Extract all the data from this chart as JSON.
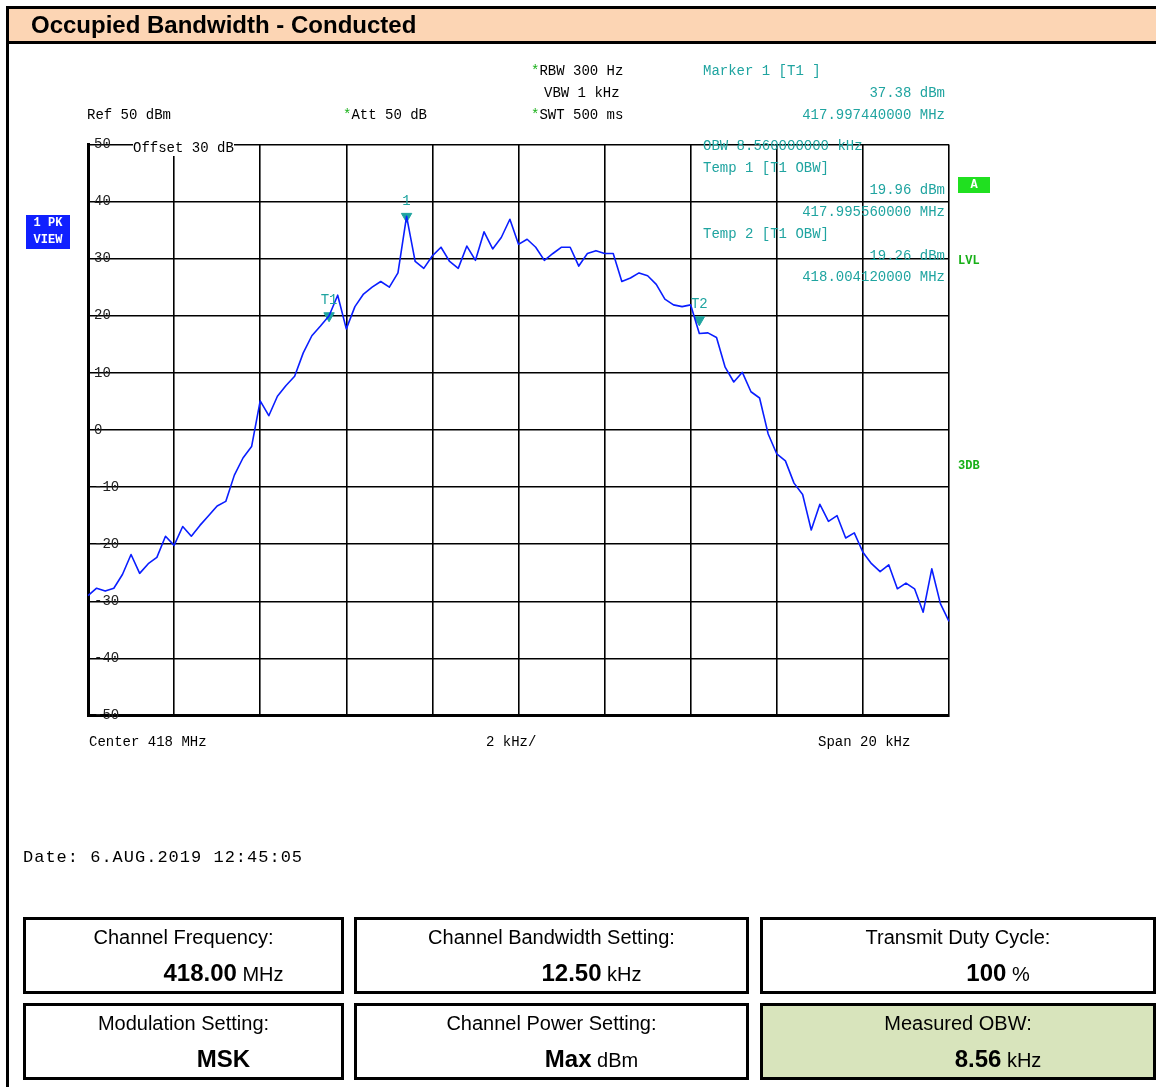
{
  "chart_data": {
    "type": "line",
    "title": "Occupied Bandwidth - Conducted",
    "categories": [
      null,
      null,
      null,
      null,
      null,
      null,
      null,
      null,
      null,
      null,
      null,
      null,
      null,
      null,
      null,
      null,
      null,
      null,
      null,
      null,
      null,
      null,
      null,
      null,
      null,
      null,
      null,
      null,
      null,
      null,
      null,
      null,
      null,
      null,
      null,
      null,
      null,
      null,
      null,
      null,
      null,
      null,
      null,
      null,
      null,
      null,
      null,
      null,
      null,
      null,
      null,
      null,
      null,
      null,
      null,
      null,
      null,
      null,
      null,
      null,
      null,
      null,
      null,
      null,
      null,
      null,
      null,
      null,
      null,
      null,
      null,
      null,
      null,
      null,
      null,
      null,
      null,
      null,
      null,
      null,
      null,
      null,
      null,
      null,
      null,
      null,
      null,
      null,
      null,
      null,
      null,
      null,
      null,
      null,
      null,
      null,
      null,
      null,
      null,
      null,
      null
    ],
    "series": [
      {
        "color": "#0a1eff",
        "values": [
          -29,
          -27.7,
          -28.2,
          -27.7,
          -25.3,
          -21.8,
          -25.1,
          -23.4,
          -22.3,
          -18.6,
          -20.2,
          -16.9,
          -18.6,
          -16.7,
          -15,
          -13.3,
          -12.5,
          -7.9,
          -4.9,
          -2.9,
          5.1,
          2.5,
          5.9,
          7.8,
          9.4,
          13.5,
          16.5,
          18.2,
          20,
          23.6,
          17.7,
          21.6,
          23.8,
          25,
          26,
          25,
          27.5,
          37.4,
          29.5,
          28.3,
          30.5,
          32,
          29.5,
          28.3,
          32.2,
          29.7,
          34.7,
          31.7,
          33.7,
          36.9,
          32.5,
          33.4,
          32,
          29.7,
          30.9,
          32,
          32,
          28.7,
          30.9,
          31.4,
          30.9,
          30.9,
          26,
          26.6,
          27.5,
          27,
          25.5,
          22.9,
          21.9,
          21.6,
          21.9,
          16.9,
          17,
          16.2,
          11,
          8.4,
          10.1,
          6.7,
          5.6,
          -0.7,
          -4.2,
          -5.4,
          -9.3,
          -11.3,
          -17.5,
          -13,
          -16,
          -15,
          -18.9,
          -18,
          -21.4,
          -23.4,
          -24.8,
          -23.6,
          -27.8,
          -26.8,
          -27.8,
          -31.9,
          -24.3,
          -30.4,
          -33.5
        ]
      },
      {
        "type": "scatter",
        "marker": "triangle",
        "color": "#1fa4a0",
        "values": [
          null,
          null,
          null,
          null,
          null,
          null,
          null,
          null,
          null,
          null,
          null,
          null,
          null,
          null,
          null,
          null,
          null,
          null,
          null,
          null,
          null,
          null,
          null,
          null,
          null,
          null,
          null,
          null,
          20,
          null,
          null,
          null,
          null,
          null,
          null,
          null,
          null,
          37.4,
          null,
          null,
          null,
          null,
          null,
          null,
          null,
          null,
          null,
          null,
          null,
          null,
          null,
          null,
          null,
          null,
          null,
          null,
          null,
          null,
          null,
          null,
          null,
          null,
          null,
          null,
          null,
          null,
          null,
          null,
          null,
          null,
          null,
          19.3,
          null,
          null,
          null,
          null,
          null,
          null,
          null,
          null,
          null,
          null,
          null,
          null,
          null,
          null,
          null,
          null,
          null,
          null,
          null,
          null,
          null,
          null,
          null,
          null,
          null,
          null,
          null,
          null,
          null
        ]
      }
    ],
    "ylim": [
      -50,
      50
    ],
    "yticks": [
      -50,
      -40,
      -30,
      -20,
      -10,
      0,
      10,
      20,
      30,
      40,
      50
    ],
    "tick_labels": "y",
    "grid": true,
    "legend": false,
    "marker": "none",
    "line_style": "solid",
    "annotations": [
      "*RBW 300 Hz",
      "VBW 1 kHz",
      "*SWT 500 ms",
      "Ref 50 dBm",
      "*Att 50 dB",
      "Marker 1 [T1 ]",
      "37.38 dBm",
      "417.997440000 MHz",
      "OBW 8.560000000 kHz",
      "Temp 1 [T1 OBW]",
      "19.96 dBm",
      "417.995560000 MHz",
      "Temp 2 [T1 OBW]",
      "19.26 dBm",
      "418.004120000 MHz",
      "Offset 30 dB",
      "1 PK VIEW",
      "A",
      "LVL",
      "3DB",
      "Center 418 MHz",
      "2 kHz/",
      "Span 20 kHz",
      "Date: 6.AUG.2019 12:45:05",
      "Channel Frequency:",
      "418.00 MHz",
      "Channel Bandwidth Setting:",
      "12.50 kHz",
      "Transmit Duty Cycle:",
      "100 %",
      "Modulation Setting:",
      "MSK",
      "Channel Power Setting:",
      "Max dBm",
      "Measured OBW:",
      "8.56 kHz",
      "T1",
      "1",
      "T2"
    ]
  }
}
